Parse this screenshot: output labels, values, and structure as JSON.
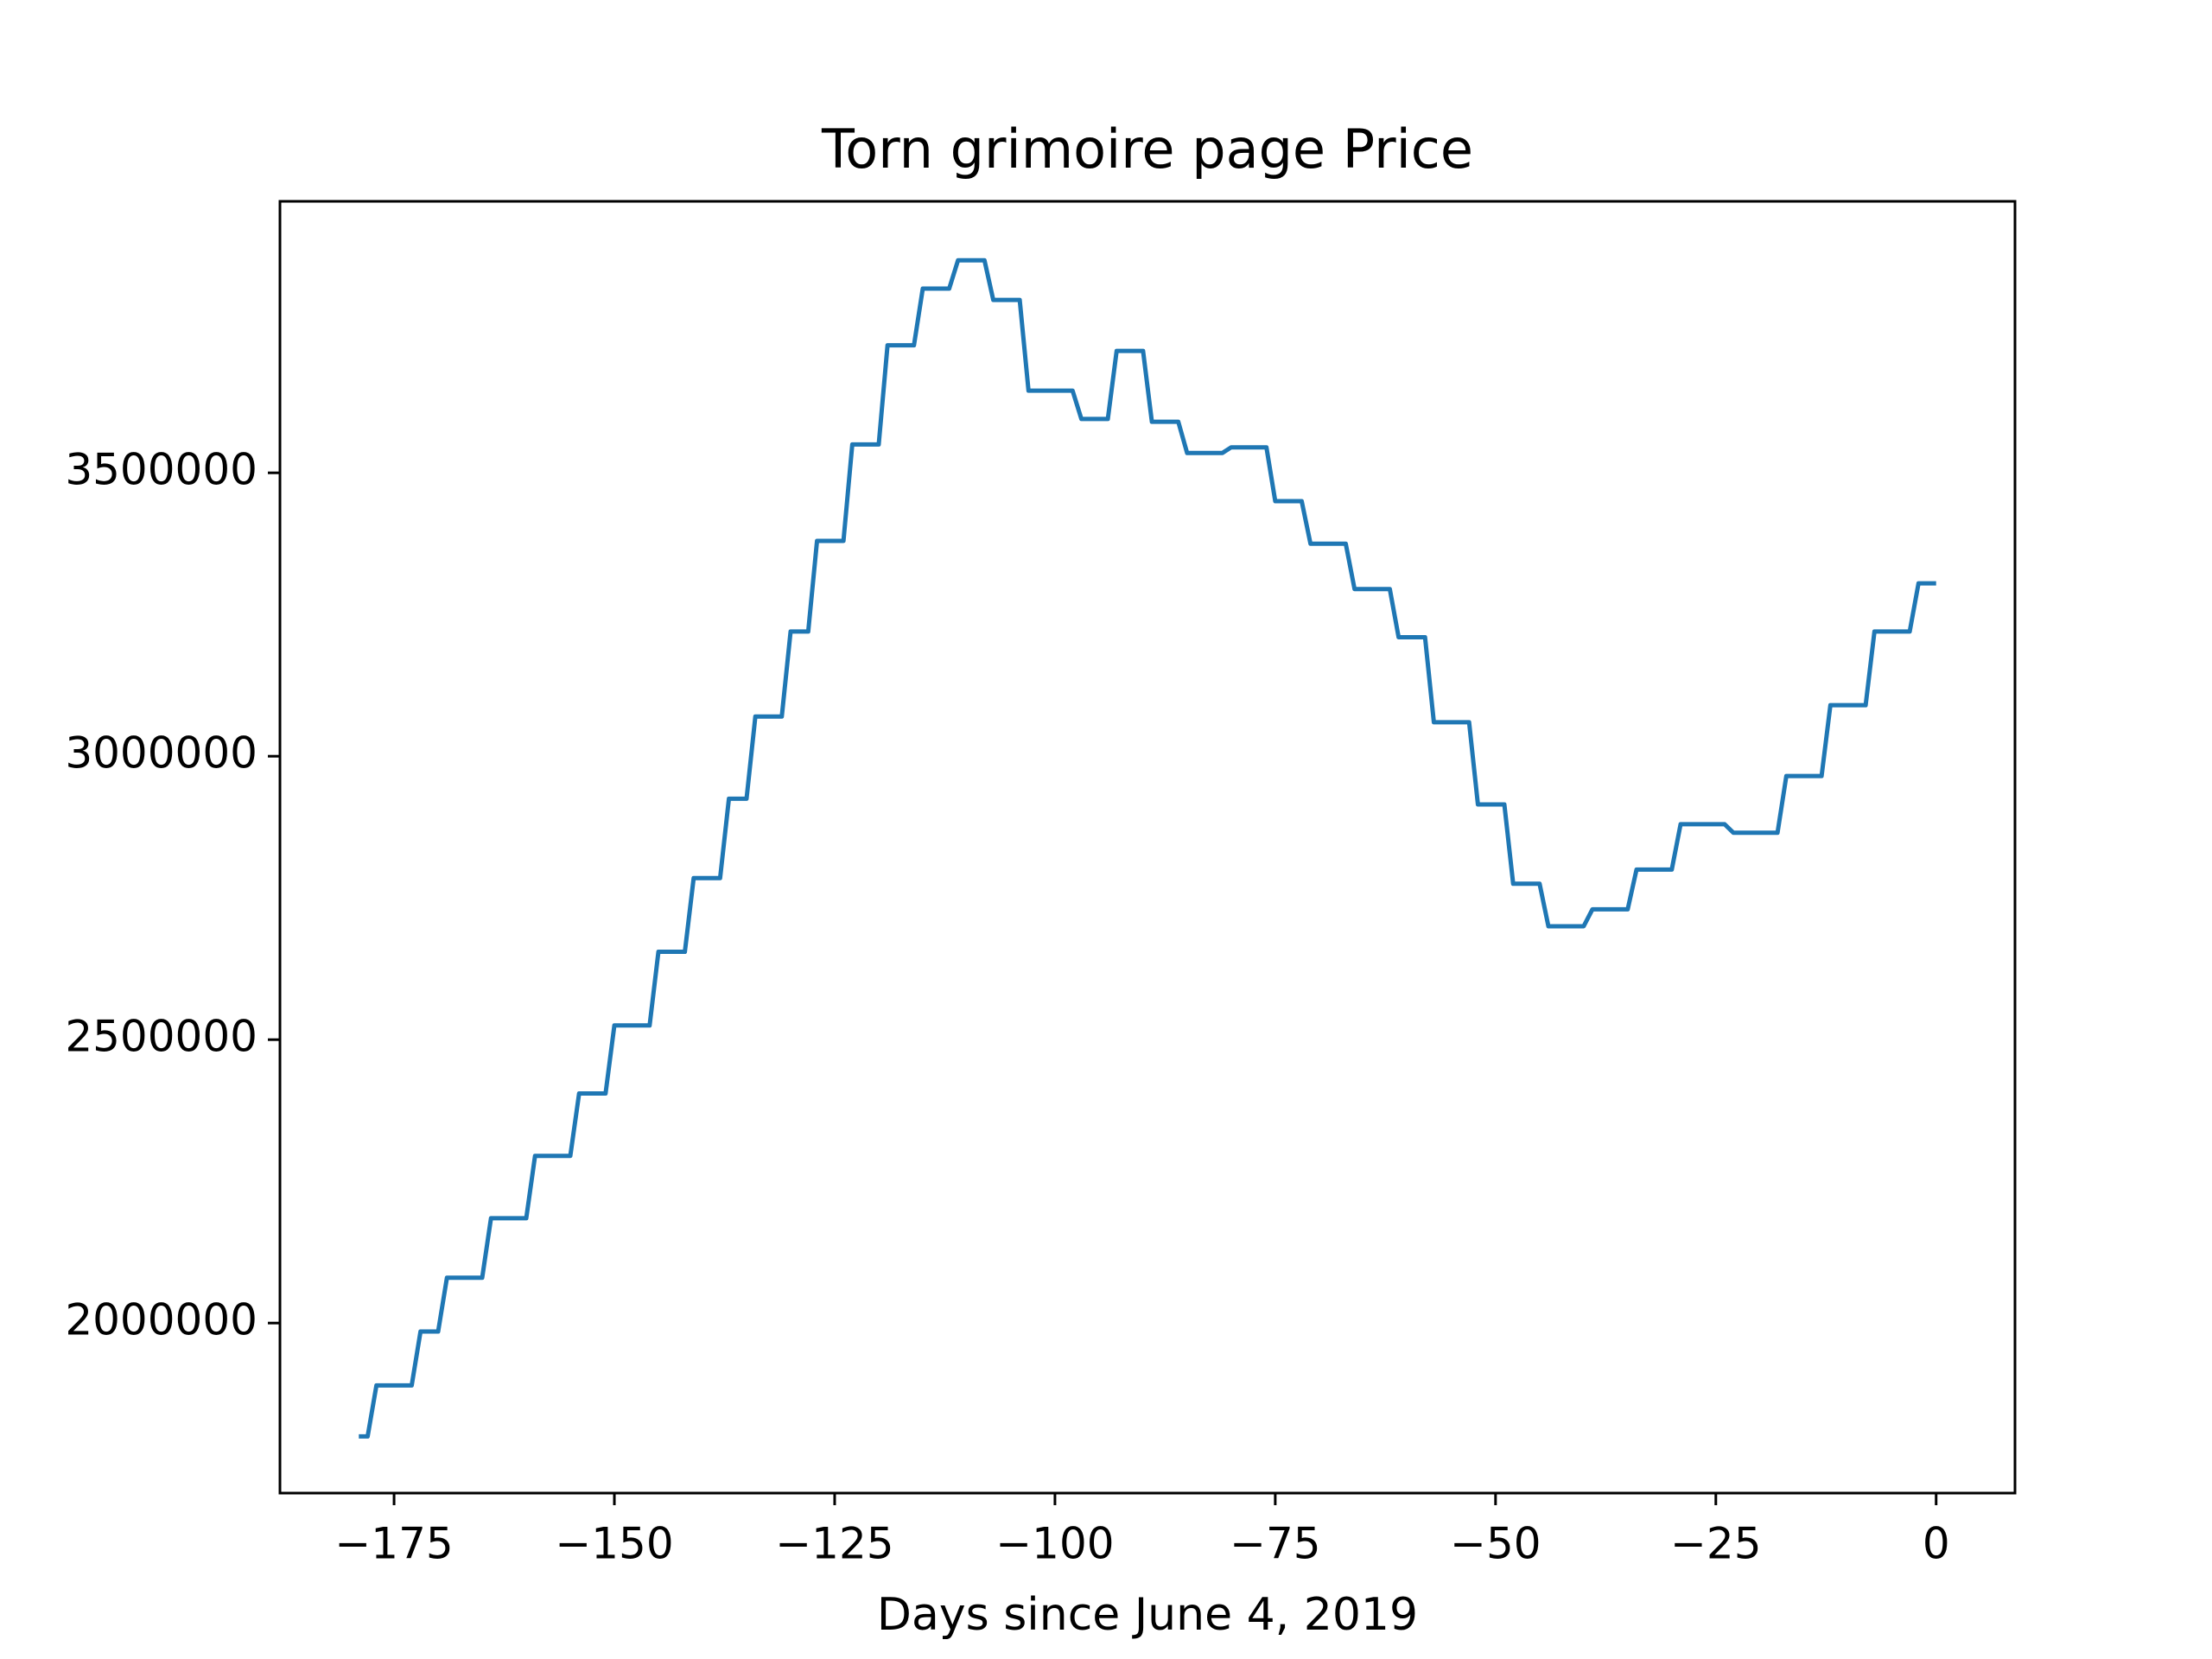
{
  "chart_data": {
    "type": "line",
    "title": "Torn grimoire page Price",
    "x_label": "Days since June 4, 2019",
    "xlim": [
      -187.95,
      8.95
    ],
    "ylim": [
      1700000,
      3979000
    ],
    "xticks": [
      {
        "value": -175,
        "label": "−175"
      },
      {
        "value": -150,
        "label": "−150"
      },
      {
        "value": -125,
        "label": "−125"
      },
      {
        "value": -100,
        "label": "−100"
      },
      {
        "value": -75,
        "label": "−75"
      },
      {
        "value": -50,
        "label": "−50"
      },
      {
        "value": -25,
        "label": "−25"
      },
      0
    ],
    "yticks": [
      2000000,
      2500000,
      3000000,
      3500000
    ],
    "grid": false,
    "series": [
      {
        "color": "#1f77b4",
        "x": [
          -179,
          -178,
          -177,
          -173,
          -172,
          -170,
          -169,
          -165,
          -164,
          -160,
          -159,
          -155,
          -154,
          -151,
          -150,
          -146,
          -145,
          -142,
          -141,
          -138,
          -137,
          -135,
          -134,
          -131,
          -130,
          -128,
          -127,
          -124,
          -123,
          -120,
          -119,
          -116,
          -115,
          -112,
          -111,
          -108,
          -107,
          -104,
          -103,
          -98,
          -97,
          -94,
          -93,
          -90,
          -89,
          -86,
          -85,
          -81,
          -80,
          -76,
          -75,
          -72,
          -71,
          -67,
          -66,
          -62,
          -61,
          -58,
          -57,
          -53,
          -52,
          -49,
          -48,
          -45,
          -44,
          -40,
          -39,
          -35,
          -34,
          -30,
          -29,
          -24,
          -23,
          -18,
          -17,
          -13,
          -12,
          -8,
          -7,
          -3,
          -2,
          0
        ],
        "values": [
          1800000,
          1800000,
          1890000,
          1890000,
          1985000,
          1985000,
          2080000,
          2080000,
          2185000,
          2185000,
          2295000,
          2295000,
          2405000,
          2405000,
          2525000,
          2525000,
          2655000,
          2655000,
          2785000,
          2785000,
          2925000,
          2925000,
          3070000,
          3070000,
          3220000,
          3220000,
          3380000,
          3380000,
          3550000,
          3550000,
          3725000,
          3725000,
          3825000,
          3825000,
          3875000,
          3875000,
          3805000,
          3805000,
          3645000,
          3645000,
          3595000,
          3595000,
          3715000,
          3715000,
          3590000,
          3590000,
          3535000,
          3535000,
          3545000,
          3545000,
          3450000,
          3450000,
          3375000,
          3375000,
          3295000,
          3295000,
          3210000,
          3210000,
          3060000,
          3060000,
          2915000,
          2915000,
          2775000,
          2775000,
          2700000,
          2700000,
          2730000,
          2730000,
          2800000,
          2800000,
          2880000,
          2880000,
          2865000,
          2865000,
          2965000,
          2965000,
          3090000,
          3090000,
          3220000,
          3220000,
          3305000,
          3305000
        ]
      }
    ]
  }
}
